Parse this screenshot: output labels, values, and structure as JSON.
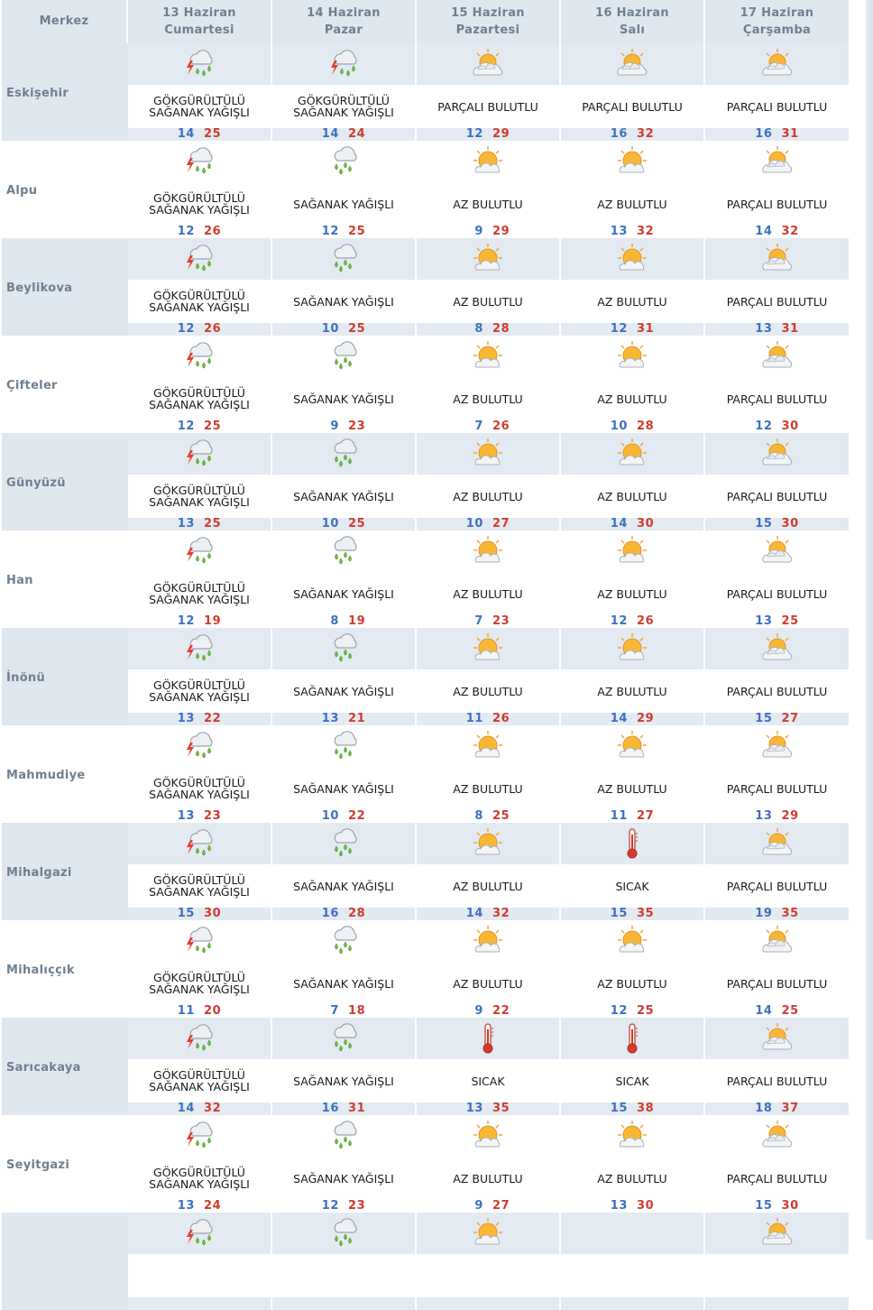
{
  "header": {
    "city_col": "Merkez",
    "days": [
      {
        "date": "13 Haziran",
        "weekday": "Cumartesi"
      },
      {
        "date": "14 Haziran",
        "weekday": "Pazar"
      },
      {
        "date": "15 Haziran",
        "weekday": "Pazartesi"
      },
      {
        "date": "16 Haziran",
        "weekday": "Salı"
      },
      {
        "date": "17 Haziran",
        "weekday": "Çarşamba"
      }
    ]
  },
  "rows": [
    {
      "city": "Eskişehir",
      "days": [
        {
          "icon": "thunderstorm-icon",
          "desc1": "GÖKGÜRÜLTÜLÜ",
          "desc2": "SAĞANAK YAĞIŞLI",
          "min": "14",
          "max": "25"
        },
        {
          "icon": "thunderstorm-icon",
          "desc1": "GÖKGÜRÜLTÜLÜ",
          "desc2": "SAĞANAK YAĞIŞLI",
          "min": "14",
          "max": "24"
        },
        {
          "icon": "partly-cloudy-icon",
          "desc1": "PARÇALI BULUTLU",
          "desc2": "",
          "min": "12",
          "max": "29"
        },
        {
          "icon": "partly-cloudy-icon",
          "desc1": "PARÇALI BULUTLU",
          "desc2": "",
          "min": "16",
          "max": "32"
        },
        {
          "icon": "partly-cloudy-icon",
          "desc1": "PARÇALI BULUTLU",
          "desc2": "",
          "min": "16",
          "max": "31"
        }
      ]
    },
    {
      "city": "Alpu",
      "days": [
        {
          "icon": "thunderstorm-icon",
          "desc1": "GÖKGÜRÜLTÜLÜ",
          "desc2": "SAĞANAK YAĞIŞLI",
          "min": "12",
          "max": "26"
        },
        {
          "icon": "showers-icon",
          "desc1": "SAĞANAK YAĞIŞLI",
          "desc2": "",
          "min": "12",
          "max": "25"
        },
        {
          "icon": "mostly-sunny-icon",
          "desc1": "AZ BULUTLU",
          "desc2": "",
          "min": "9",
          "max": "29"
        },
        {
          "icon": "mostly-sunny-icon",
          "desc1": "AZ BULUTLU",
          "desc2": "",
          "min": "13",
          "max": "32"
        },
        {
          "icon": "partly-cloudy-icon",
          "desc1": "PARÇALI BULUTLU",
          "desc2": "",
          "min": "14",
          "max": "32"
        }
      ]
    },
    {
      "city": "Beylikova",
      "days": [
        {
          "icon": "thunderstorm-icon",
          "desc1": "GÖKGÜRÜLTÜLÜ",
          "desc2": "SAĞANAK YAĞIŞLI",
          "min": "12",
          "max": "26"
        },
        {
          "icon": "showers-icon",
          "desc1": "SAĞANAK YAĞIŞLI",
          "desc2": "",
          "min": "10",
          "max": "25"
        },
        {
          "icon": "mostly-sunny-icon",
          "desc1": "AZ BULUTLU",
          "desc2": "",
          "min": "8",
          "max": "28"
        },
        {
          "icon": "mostly-sunny-icon",
          "desc1": "AZ BULUTLU",
          "desc2": "",
          "min": "12",
          "max": "31"
        },
        {
          "icon": "partly-cloudy-icon",
          "desc1": "PARÇALI BULUTLU",
          "desc2": "",
          "min": "13",
          "max": "31"
        }
      ]
    },
    {
      "city": "Çifteler",
      "days": [
        {
          "icon": "thunderstorm-icon",
          "desc1": "GÖKGÜRÜLTÜLÜ",
          "desc2": "SAĞANAK YAĞIŞLI",
          "min": "12",
          "max": "25"
        },
        {
          "icon": "showers-icon",
          "desc1": "SAĞANAK YAĞIŞLI",
          "desc2": "",
          "min": "9",
          "max": "23"
        },
        {
          "icon": "mostly-sunny-icon",
          "desc1": "AZ BULUTLU",
          "desc2": "",
          "min": "7",
          "max": "26"
        },
        {
          "icon": "mostly-sunny-icon",
          "desc1": "AZ BULUTLU",
          "desc2": "",
          "min": "10",
          "max": "28"
        },
        {
          "icon": "partly-cloudy-icon",
          "desc1": "PARÇALI BULUTLU",
          "desc2": "",
          "min": "12",
          "max": "30"
        }
      ]
    },
    {
      "city": "Günyüzü",
      "days": [
        {
          "icon": "thunderstorm-icon",
          "desc1": "GÖKGÜRÜLTÜLÜ",
          "desc2": "SAĞANAK YAĞIŞLI",
          "min": "13",
          "max": "25"
        },
        {
          "icon": "showers-icon",
          "desc1": "SAĞANAK YAĞIŞLI",
          "desc2": "",
          "min": "10",
          "max": "25"
        },
        {
          "icon": "mostly-sunny-icon",
          "desc1": "AZ BULUTLU",
          "desc2": "",
          "min": "10",
          "max": "27"
        },
        {
          "icon": "mostly-sunny-icon",
          "desc1": "AZ BULUTLU",
          "desc2": "",
          "min": "14",
          "max": "30"
        },
        {
          "icon": "partly-cloudy-icon",
          "desc1": "PARÇALI BULUTLU",
          "desc2": "",
          "min": "15",
          "max": "30"
        }
      ]
    },
    {
      "city": "Han",
      "days": [
        {
          "icon": "thunderstorm-icon",
          "desc1": "GÖKGÜRÜLTÜLÜ",
          "desc2": "SAĞANAK YAĞIŞLI",
          "min": "12",
          "max": "19"
        },
        {
          "icon": "showers-icon",
          "desc1": "SAĞANAK YAĞIŞLI",
          "desc2": "",
          "min": "8",
          "max": "19"
        },
        {
          "icon": "mostly-sunny-icon",
          "desc1": "AZ BULUTLU",
          "desc2": "",
          "min": "7",
          "max": "23"
        },
        {
          "icon": "mostly-sunny-icon",
          "desc1": "AZ BULUTLU",
          "desc2": "",
          "min": "12",
          "max": "26"
        },
        {
          "icon": "partly-cloudy-icon",
          "desc1": "PARÇALI BULUTLU",
          "desc2": "",
          "min": "13",
          "max": "25"
        }
      ]
    },
    {
      "city": "İnönü",
      "days": [
        {
          "icon": "thunderstorm-icon",
          "desc1": "GÖKGÜRÜLTÜLÜ",
          "desc2": "SAĞANAK YAĞIŞLI",
          "min": "13",
          "max": "22"
        },
        {
          "icon": "showers-icon",
          "desc1": "SAĞANAK YAĞIŞLI",
          "desc2": "",
          "min": "13",
          "max": "21"
        },
        {
          "icon": "mostly-sunny-icon",
          "desc1": "AZ BULUTLU",
          "desc2": "",
          "min": "11",
          "max": "26"
        },
        {
          "icon": "mostly-sunny-icon",
          "desc1": "AZ BULUTLU",
          "desc2": "",
          "min": "14",
          "max": "29"
        },
        {
          "icon": "partly-cloudy-icon",
          "desc1": "PARÇALI BULUTLU",
          "desc2": "",
          "min": "15",
          "max": "27"
        }
      ]
    },
    {
      "city": "Mahmudiye",
      "days": [
        {
          "icon": "thunderstorm-icon",
          "desc1": "GÖKGÜRÜLTÜLÜ",
          "desc2": "SAĞANAK YAĞIŞLI",
          "min": "13",
          "max": "23"
        },
        {
          "icon": "showers-icon",
          "desc1": "SAĞANAK YAĞIŞLI",
          "desc2": "",
          "min": "10",
          "max": "22"
        },
        {
          "icon": "mostly-sunny-icon",
          "desc1": "AZ BULUTLU",
          "desc2": "",
          "min": "8",
          "max": "25"
        },
        {
          "icon": "mostly-sunny-icon",
          "desc1": "AZ BULUTLU",
          "desc2": "",
          "min": "11",
          "max": "27"
        },
        {
          "icon": "partly-cloudy-icon",
          "desc1": "PARÇALI BULUTLU",
          "desc2": "",
          "min": "13",
          "max": "29"
        }
      ]
    },
    {
      "city": "Mihalgazi",
      "days": [
        {
          "icon": "thunderstorm-icon",
          "desc1": "GÖKGÜRÜLTÜLÜ",
          "desc2": "SAĞANAK YAĞIŞLI",
          "min": "15",
          "max": "30"
        },
        {
          "icon": "showers-icon",
          "desc1": "SAĞANAK YAĞIŞLI",
          "desc2": "",
          "min": "16",
          "max": "28"
        },
        {
          "icon": "mostly-sunny-icon",
          "desc1": "AZ BULUTLU",
          "desc2": "",
          "min": "14",
          "max": "32"
        },
        {
          "icon": "thermometer-icon",
          "desc1": "SICAK",
          "desc2": "",
          "min": "15",
          "max": "35"
        },
        {
          "icon": "partly-cloudy-icon",
          "desc1": "PARÇALI BULUTLU",
          "desc2": "",
          "min": "19",
          "max": "35"
        }
      ]
    },
    {
      "city": "Mihalıççık",
      "days": [
        {
          "icon": "thunderstorm-icon",
          "desc1": "GÖKGÜRÜLTÜLÜ",
          "desc2": "SAĞANAK YAĞIŞLI",
          "min": "11",
          "max": "20"
        },
        {
          "icon": "showers-icon",
          "desc1": "SAĞANAK YAĞIŞLI",
          "desc2": "",
          "min": "7",
          "max": "18"
        },
        {
          "icon": "mostly-sunny-icon",
          "desc1": "AZ BULUTLU",
          "desc2": "",
          "min": "9",
          "max": "22"
        },
        {
          "icon": "mostly-sunny-icon",
          "desc1": "AZ BULUTLU",
          "desc2": "",
          "min": "12",
          "max": "25"
        },
        {
          "icon": "partly-cloudy-icon",
          "desc1": "PARÇALI BULUTLU",
          "desc2": "",
          "min": "14",
          "max": "25"
        }
      ]
    },
    {
      "city": "Sarıcakaya",
      "days": [
        {
          "icon": "thunderstorm-icon",
          "desc1": "GÖKGÜRÜLTÜLÜ",
          "desc2": "SAĞANAK YAĞIŞLI",
          "min": "14",
          "max": "32"
        },
        {
          "icon": "showers-icon",
          "desc1": "SAĞANAK YAĞIŞLI",
          "desc2": "",
          "min": "16",
          "max": "31"
        },
        {
          "icon": "thermometer-icon",
          "desc1": "SICAK",
          "desc2": "",
          "min": "13",
          "max": "35"
        },
        {
          "icon": "thermometer-icon",
          "desc1": "SICAK",
          "desc2": "",
          "min": "15",
          "max": "38"
        },
        {
          "icon": "partly-cloudy-icon",
          "desc1": "PARÇALI BULUTLU",
          "desc2": "",
          "min": "18",
          "max": "37"
        }
      ]
    },
    {
      "city": "Seyitgazi",
      "days": [
        {
          "icon": "thunderstorm-icon",
          "desc1": "GÖKGÜRÜLTÜLÜ",
          "desc2": "SAĞANAK YAĞIŞLI",
          "min": "13",
          "max": "24"
        },
        {
          "icon": "showers-icon",
          "desc1": "SAĞANAK YAĞIŞLI",
          "desc2": "",
          "min": "12",
          "max": "23"
        },
        {
          "icon": "mostly-sunny-icon",
          "desc1": "AZ BULUTLU",
          "desc2": "",
          "min": "9",
          "max": "27"
        },
        {
          "icon": "mostly-sunny-icon",
          "desc1": "AZ BULUTLU",
          "desc2": "",
          "min": "13",
          "max": "30"
        },
        {
          "icon": "partly-cloudy-icon",
          "desc1": "PARÇALI BULUTLU",
          "desc2": "",
          "min": "15",
          "max": "30"
        }
      ]
    },
    {
      "city": "",
      "days": [
        {
          "icon": "thunderstorm-icon",
          "desc1": "",
          "desc2": "",
          "min": "",
          "max": ""
        },
        {
          "icon": "showers-icon",
          "desc1": "",
          "desc2": "",
          "min": "",
          "max": ""
        },
        {
          "icon": "mostly-sunny-icon",
          "desc1": "",
          "desc2": "",
          "min": "",
          "max": ""
        },
        {
          "icon": "none",
          "desc1": "",
          "desc2": "",
          "min": "",
          "max": ""
        },
        {
          "icon": "partly-cloudy-icon",
          "desc1": "",
          "desc2": "",
          "min": "",
          "max": ""
        }
      ]
    }
  ]
}
